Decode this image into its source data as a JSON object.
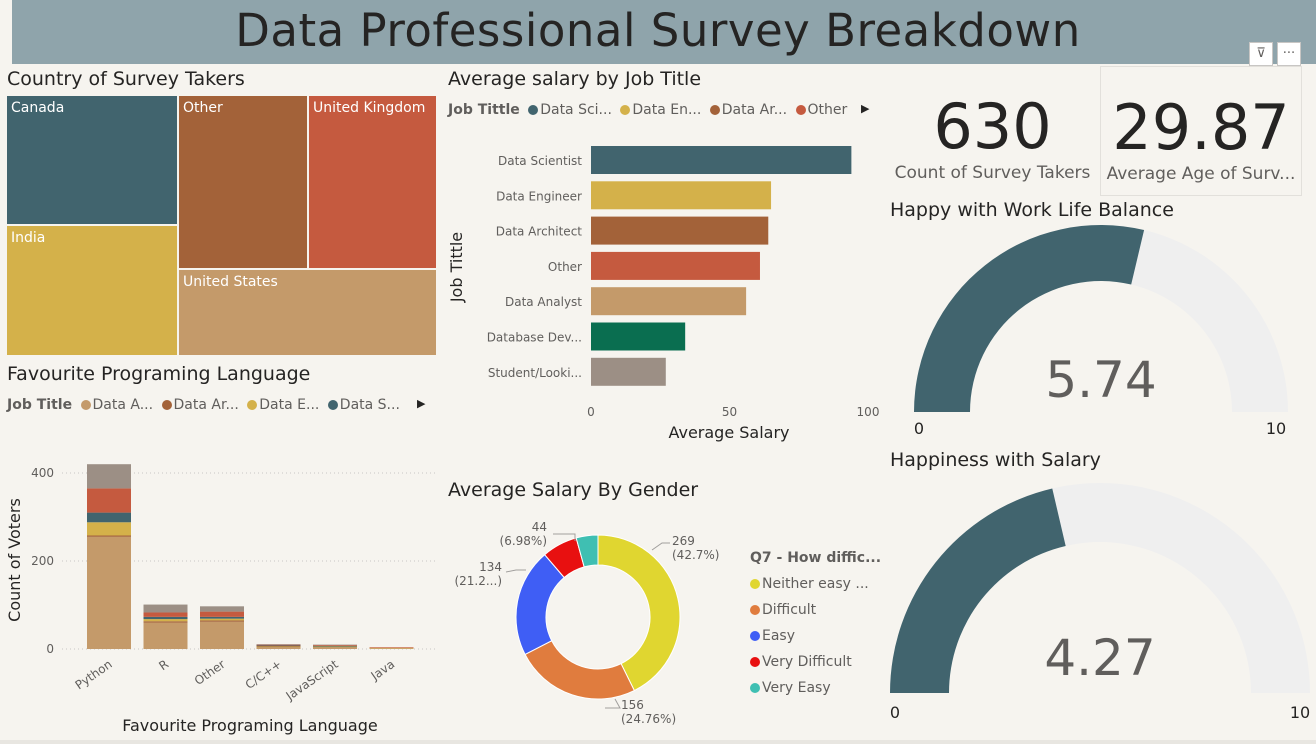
{
  "header": {
    "title": "Data Professional Survey Breakdown"
  },
  "toolbar": {
    "filter_icon": "filter-icon",
    "more_icon": "more-options-icon",
    "filter_glyph": "⊽",
    "more_glyph": "···"
  },
  "colors": {
    "teal": "#41646e",
    "mustard": "#d4b14a",
    "rust": "#a36239",
    "red": "#c55a3f",
    "tan": "#c49a6a",
    "green": "#0a6e50",
    "grey": "#9c8f85",
    "gauge_bg": "#efefef"
  },
  "treemap": {
    "title": "Country of Survey Takers",
    "tiles": [
      {
        "label": "Canada",
        "color": "#41646e"
      },
      {
        "label": "Other",
        "color": "#a36239"
      },
      {
        "label": "United Kingdom",
        "color": "#c55a3f"
      },
      {
        "label": "India",
        "color": "#d4b14a"
      },
      {
        "label": "United States",
        "color": "#c49a6a"
      }
    ]
  },
  "language_chart": {
    "title": "Favourite Programing Language",
    "legend_title": "Job Title",
    "legend_items": [
      {
        "label": "Data A...",
        "color": "#c49a6a"
      },
      {
        "label": "Data Ar...",
        "color": "#a36239"
      },
      {
        "label": "Data E...",
        "color": "#d4b14a"
      },
      {
        "label": "Data S...",
        "color": "#41646e"
      }
    ]
  },
  "salary_job_chart": {
    "title": "Average salary by Job Title",
    "legend_title": "Job Tittle",
    "legend_items": [
      {
        "label": "Data Sci...",
        "color": "#41646e"
      },
      {
        "label": "Data En...",
        "color": "#d4b14a"
      },
      {
        "label": "Data Ar...",
        "color": "#a36239"
      },
      {
        "label": "Other",
        "color": "#c55a3f"
      }
    ]
  },
  "gender_chart": {
    "title": "Average Salary By Gender",
    "legend_title": "Q7 - How diffic...",
    "legend_items": [
      {
        "label": "Neither easy ...",
        "color": "#e0d630"
      },
      {
        "label": "Difficult",
        "color": "#e07c3e"
      },
      {
        "label": "Easy",
        "color": "#3f5ef5"
      },
      {
        "label": "Very Difficult",
        "color": "#e81010"
      },
      {
        "label": "Very Easy",
        "color": "#3fbfb2"
      }
    ],
    "slice_labels": [
      {
        "value": "269",
        "pct": "(42.7%)"
      },
      {
        "value": "156",
        "pct": "(24.76%)"
      },
      {
        "value": "134",
        "pct": "(21.2...)"
      },
      {
        "value": "44",
        "pct": "(6.98%)"
      }
    ]
  },
  "cards": {
    "count": {
      "value": "630",
      "label": "Count of Survey Takers"
    },
    "age": {
      "value": "29.87",
      "label": "Average Age of  Surv..."
    }
  },
  "gauge_worklife": {
    "title": "Happy with Work Life Balance",
    "value_text": "5.74",
    "min": "0",
    "max": "10"
  },
  "gauge_salary": {
    "title": "Happiness with Salary",
    "value_text": "4.27",
    "min": "0",
    "max": "10"
  },
  "chart_data": [
    {
      "type": "treemap",
      "title": "Country of Survey Takers",
      "categories": [
        "Canada",
        "Other",
        "United Kingdom",
        "India",
        "United States"
      ]
    },
    {
      "type": "bar",
      "stacked": true,
      "title": "Favourite Programing Language",
      "xlabel": "Favourite Programing Language",
      "ylabel": "Count of Voters",
      "ylim": [
        0,
        420
      ],
      "yticks": [
        "0",
        "200",
        "400"
      ],
      "categories": [
        "Python",
        "R",
        "Other",
        "C/C++",
        "JavaScript",
        "Java"
      ],
      "series": [
        {
          "name": "Data A...",
          "color": "#c49a6a",
          "values": [
            255,
            60,
            62,
            5,
            5,
            2
          ]
        },
        {
          "name": "Data Ar...",
          "color": "#a36239",
          "values": [
            3,
            3,
            3,
            1,
            0,
            0
          ]
        },
        {
          "name": "Data E...",
          "color": "#d4b14a",
          "values": [
            30,
            5,
            4,
            1,
            1,
            1
          ]
        },
        {
          "name": "Data S...",
          "color": "#41646e",
          "values": [
            22,
            5,
            4,
            1,
            1,
            0
          ]
        },
        {
          "name": "",
          "color": "#c55a3f",
          "values": [
            55,
            10,
            12,
            2,
            2,
            1
          ]
        },
        {
          "name": "",
          "color": "#9c8f85",
          "values": [
            55,
            18,
            12,
            1,
            1,
            0
          ]
        }
      ]
    },
    {
      "type": "bar",
      "orientation": "horizontal",
      "title": "Average salary by Job Title",
      "xlabel": "Average Salary",
      "ylabel": "Job Tittle",
      "xlim": [
        0,
        100
      ],
      "xticks": [
        "0",
        "50",
        "100"
      ],
      "categories": [
        "Data Scientist",
        "Data Engineer",
        "Data Architect",
        "Other",
        "Data Analyst",
        "Database Dev...",
        "Student/Looki..."
      ],
      "values": [
        94,
        65,
        64,
        61,
        56,
        34,
        27
      ],
      "colors": [
        "#41646e",
        "#d4b14a",
        "#a36239",
        "#c55a3f",
        "#c49a6a",
        "#0a6e50",
        "#9c8f85"
      ]
    },
    {
      "type": "pie",
      "donut": true,
      "title": "Average Salary By Gender",
      "categories": [
        "Neither easy ...",
        "Difficult",
        "Easy",
        "Very Difficult",
        "Very Easy"
      ],
      "values": [
        269,
        156,
        134,
        44,
        27
      ],
      "colors": [
        "#e0d630",
        "#e07c3e",
        "#3f5ef5",
        "#e81010",
        "#3fbfb2"
      ]
    },
    {
      "type": "gauge",
      "title": "Happy with Work Life Balance",
      "value": 5.74,
      "min": 0,
      "max": 10
    },
    {
      "type": "gauge",
      "title": "Happiness with Salary",
      "value": 4.27,
      "min": 0,
      "max": 10
    }
  ]
}
